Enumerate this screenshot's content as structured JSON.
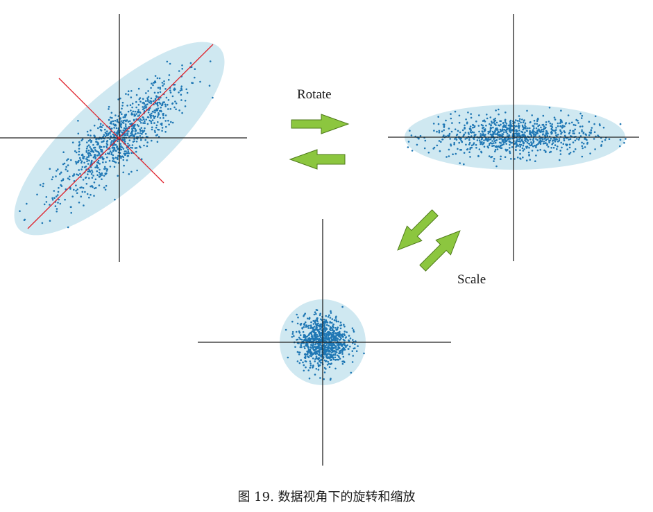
{
  "labels": {
    "rotate": "Rotate",
    "scale": "Scale"
  },
  "caption": "图 19. 数据视角下的旋转和缩放",
  "colors": {
    "ellipse_fill": "#cfe8f1",
    "dots": "#1f77b4",
    "axes": "#222222",
    "principal_axes": "#e0202a",
    "arrow_fill": "#8cc63f",
    "arrow_stroke": "#4e7a1a"
  }
}
